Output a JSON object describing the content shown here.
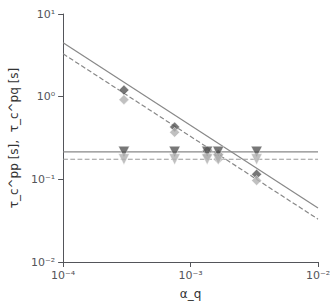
{
  "chart_data": {
    "type": "scatter",
    "xlabel": "α_q",
    "ylabel": "τ_c^pp [s],  τ_c^pq [s]",
    "log": true,
    "grid": false,
    "xlim": [
      0.0001,
      0.01
    ],
    "ylim": [
      0.01,
      10
    ],
    "xticks": [
      {
        "value": 0.0001,
        "label": "10⁻⁴"
      },
      {
        "value": 0.001,
        "label": "10⁻³"
      },
      {
        "value": 0.01,
        "label": "10⁻²"
      }
    ],
    "yticks": [
      {
        "value": 0.01,
        "label": "10⁻²"
      },
      {
        "value": 0.1,
        "label": "10⁻¹"
      },
      {
        "value": 1,
        "label": "10⁰"
      },
      {
        "value": 10,
        "label": "10¹"
      }
    ],
    "series": [
      {
        "type": "line",
        "line_style": "solid",
        "color": "#888888",
        "x": [
          0.0001,
          0.01
        ],
        "values": [
          4.5,
          0.045
        ]
      },
      {
        "type": "line",
        "line_style": "dashed",
        "color": "#888888",
        "x": [
          0.0001,
          0.01
        ],
        "values": [
          3.3,
          0.033
        ]
      },
      {
        "type": "line",
        "line_style": "solid",
        "color": "#888888",
        "x": [
          0.0001,
          0.01
        ],
        "values": [
          0.215,
          0.215
        ]
      },
      {
        "type": "line",
        "line_style": "dashed",
        "color": "#999999",
        "x": [
          0.0001,
          0.01
        ],
        "values": [
          0.175,
          0.175
        ]
      },
      {
        "type": "scatter",
        "marker": "diamond",
        "color": "#555555",
        "x": [
          0.0003,
          0.00075,
          0.00135,
          0.00165,
          0.0033
        ],
        "values": [
          1.2,
          0.43,
          0.22,
          0.2,
          0.115
        ]
      },
      {
        "type": "scatter",
        "marker": "diamond",
        "color": "#b0b0b0",
        "x": [
          0.0003,
          0.00075,
          0.00135,
          0.00165,
          0.0033
        ],
        "values": [
          0.92,
          0.37,
          0.195,
          0.175,
          0.097
        ]
      },
      {
        "type": "scatter",
        "marker": "triangle_down",
        "color": "#555555",
        "x": [
          0.0003,
          0.00075,
          0.00135,
          0.00165,
          0.0033
        ],
        "values": [
          0.215,
          0.215,
          0.215,
          0.215,
          0.215
        ]
      },
      {
        "type": "scatter",
        "marker": "triangle_down",
        "color": "#b0b0b0",
        "x": [
          0.0003,
          0.00075,
          0.00135,
          0.00165,
          0.0033
        ],
        "values": [
          0.175,
          0.175,
          0.175,
          0.175,
          0.175
        ]
      }
    ]
  }
}
